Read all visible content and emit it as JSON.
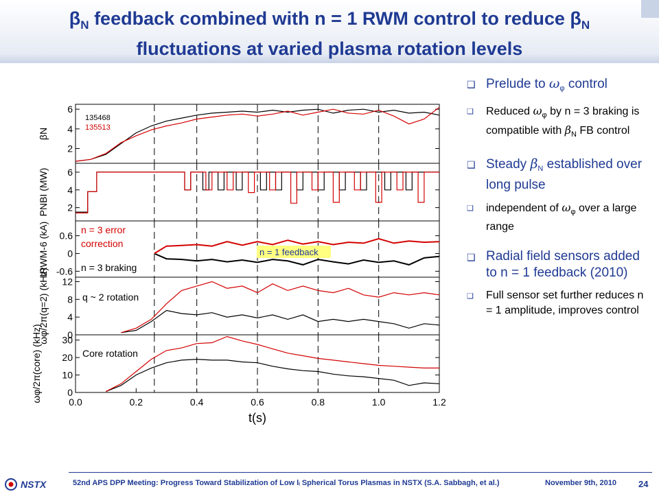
{
  "slide": {
    "title_line1_parts": [
      "β",
      "N",
      " feedback combined with n = 1 RWM control to reduce ",
      "β",
      "N"
    ],
    "title_line2": "fluctuations at varied plasma rotation levels"
  },
  "bullets": {
    "b1": {
      "text": "Prelude to ",
      "sym": "ω",
      "sub": "φ",
      "tail": " control"
    },
    "b1_sub": {
      "pre": "Reduced ",
      "sym": "ω",
      "sub": "φ",
      "mid": " by n = 3 braking is compatible with ",
      "sym2": "β",
      "sub2": "N",
      "tail": " FB control"
    },
    "b2": {
      "pre": "Steady ",
      "sym": "β",
      "sub": "N",
      "tail": " established over long pulse"
    },
    "b2_sub": {
      "pre": "independent of ",
      "sym": "ω",
      "sub": "φ",
      "tail": " over a large range"
    },
    "b3": {
      "text": "Radial field sensors added to n = 1 feedback (2010)"
    },
    "b3_sub": {
      "text": "Full sensor set further reduces n = 1 amplitude, improves control"
    }
  },
  "footer": {
    "logo_text": "NSTX",
    "meeting": "52nd APS DPP Meeting: Progress Toward Stabilization of Low lᵢ Spherical Torus Plasmas in NSTX (S.A. Sabbagh, et al.)",
    "date": "November 9th, 2010",
    "page": "24"
  },
  "colors": {
    "accent": "#1f3a93",
    "shot_black": "#000000",
    "shot_red": "#d40000",
    "highlight": "#ffff80"
  },
  "chart_data": {
    "type": "line",
    "xlabel": "t(s)",
    "xlim": [
      0.0,
      1.2
    ],
    "x_ticks": [
      "0.0",
      "0.2",
      "0.4",
      "0.6",
      "0.8",
      "1.0",
      "1.2"
    ],
    "vlines": [
      0.26,
      0.4,
      0.6,
      0.8,
      1.0
    ],
    "series_legend": [
      {
        "name": "135468",
        "color": "#000000"
      },
      {
        "name": "135513",
        "color": "#d40000"
      }
    ],
    "panels": [
      {
        "ylabel": "βN",
        "ylim": [
          0.5,
          6.5
        ],
        "y_ticks": [
          "2",
          "4",
          "6"
        ],
        "tick_values": [
          2,
          4,
          6
        ],
        "series": [
          {
            "name": "135468",
            "color": "#000000",
            "x": [
              0.0,
              0.05,
              0.1,
              0.15,
              0.2,
              0.25,
              0.3,
              0.35,
              0.4,
              0.45,
              0.5,
              0.55,
              0.6,
              0.65,
              0.7,
              0.75,
              0.8,
              0.85,
              0.9,
              0.95,
              1.0,
              1.05,
              1.1,
              1.15,
              1.2
            ],
            "y": [
              0.7,
              0.9,
              1.4,
              2.5,
              3.6,
              4.3,
              4.8,
              5.1,
              5.4,
              5.6,
              5.7,
              5.8,
              5.7,
              5.9,
              5.7,
              5.9,
              6.0,
              5.6,
              5.9,
              6.0,
              5.7,
              5.9,
              5.6,
              5.7,
              5.4
            ]
          },
          {
            "name": "135513",
            "color": "#d40000",
            "x": [
              0.0,
              0.05,
              0.1,
              0.15,
              0.2,
              0.25,
              0.3,
              0.35,
              0.4,
              0.45,
              0.5,
              0.55,
              0.6,
              0.65,
              0.7,
              0.75,
              0.8,
              0.85,
              0.9,
              0.95,
              1.0,
              1.05,
              1.1,
              1.15,
              1.2
            ],
            "y": [
              0.7,
              0.9,
              1.5,
              2.6,
              3.3,
              3.9,
              4.3,
              4.6,
              5.0,
              5.2,
              5.4,
              5.5,
              5.3,
              5.5,
              5.8,
              5.4,
              5.7,
              6.0,
              5.6,
              5.5,
              5.9,
              5.3,
              4.5,
              5.0,
              6.2
            ]
          }
        ],
        "labels": []
      },
      {
        "ylabel": "PNBI (MW)",
        "ylim": [
          0.5,
          7.0
        ],
        "y_ticks": [
          "2",
          "4",
          "6"
        ],
        "tick_values": [
          2,
          4,
          6
        ],
        "series": [
          {
            "name": "135468",
            "color": "#000000",
            "x": [
              0.0,
              0.04,
              0.04,
              0.07,
              0.07,
              0.085,
              0.085,
              0.36,
              0.36,
              0.38,
              0.38,
              0.42,
              0.42,
              0.44,
              0.44,
              0.47,
              0.47,
              0.49,
              0.49,
              0.53,
              0.53,
              0.55,
              0.55,
              0.61,
              0.61,
              0.63,
              0.63,
              0.66,
              0.66,
              0.68,
              0.68,
              0.73,
              0.73,
              0.75,
              0.75,
              0.8,
              0.8,
              0.82,
              0.82,
              0.87,
              0.87,
              0.89,
              0.89,
              0.94,
              0.94,
              0.96,
              0.96,
              1.02,
              1.02,
              1.04,
              1.04,
              1.09,
              1.09,
              1.11,
              1.11,
              1.2
            ],
            "y": [
              1.5,
              1.5,
              3.8,
              3.8,
              6.0,
              6.0,
              6.0,
              6.0,
              4.0,
              4.0,
              6.0,
              6.0,
              4.0,
              4.0,
              6.0,
              6.0,
              4.0,
              4.0,
              6.0,
              6.0,
              4.0,
              4.0,
              6.0,
              6.0,
              4.0,
              4.0,
              6.0,
              6.0,
              4.0,
              4.0,
              6.0,
              6.0,
              4.0,
              4.0,
              6.0,
              6.0,
              4.0,
              4.0,
              6.0,
              6.0,
              4.0,
              4.0,
              6.0,
              6.0,
              4.0,
              4.0,
              6.0,
              6.0,
              4.0,
              4.0,
              6.0,
              6.0,
              4.0,
              4.0,
              6.0,
              6.0
            ]
          },
          {
            "name": "135513",
            "color": "#d40000",
            "x": [
              0.0,
              0.04,
              0.04,
              0.07,
              0.07,
              0.09,
              0.09,
              0.36,
              0.36,
              0.38,
              0.38,
              0.43,
              0.43,
              0.45,
              0.45,
              0.5,
              0.5,
              0.52,
              0.52,
              0.57,
              0.57,
              0.59,
              0.59,
              0.64,
              0.64,
              0.66,
              0.66,
              0.71,
              0.71,
              0.73,
              0.73,
              0.78,
              0.78,
              0.8,
              0.8,
              0.85,
              0.85,
              0.87,
              0.87,
              0.92,
              0.92,
              0.94,
              0.94,
              0.99,
              0.99,
              1.01,
              1.01,
              1.06,
              1.06,
              1.08,
              1.08,
              1.13,
              1.13,
              1.15,
              1.15,
              1.2
            ],
            "y": [
              1.4,
              1.4,
              3.8,
              3.8,
              6.0,
              6.0,
              6.0,
              6.0,
              4.0,
              4.0,
              6.0,
              6.0,
              4.0,
              4.0,
              6.0,
              6.0,
              4.0,
              4.0,
              6.0,
              6.0,
              3.7,
              3.7,
              6.0,
              6.0,
              4.0,
              4.0,
              6.0,
              6.0,
              2.5,
              2.5,
              6.0,
              6.0,
              4.0,
              4.0,
              6.0,
              6.0,
              2.6,
              2.6,
              6.0,
              6.0,
              4.0,
              4.0,
              6.0,
              6.0,
              2.6,
              2.6,
              6.0,
              6.0,
              4.0,
              4.0,
              6.0,
              6.0,
              2.6,
              2.6,
              6.0,
              6.0
            ]
          }
        ],
        "labels": []
      },
      {
        "ylabel": "IRWM-6 (kA)",
        "ylim": [
          -0.8,
          1.1
        ],
        "y_ticks": [
          "0.6",
          "0",
          "-0.6"
        ],
        "tick_values": [
          0.6,
          0,
          -0.6
        ],
        "series": [
          {
            "name": "135468",
            "color": "#000000",
            "x": [
              0.26,
              0.3,
              0.35,
              0.4,
              0.45,
              0.5,
              0.55,
              0.6,
              0.65,
              0.7,
              0.75,
              0.8,
              0.85,
              0.9,
              0.95,
              1.0,
              1.05,
              1.1,
              1.15,
              1.2
            ],
            "y": [
              0.0,
              -0.18,
              -0.2,
              -0.25,
              -0.2,
              -0.28,
              -0.22,
              -0.3,
              -0.2,
              -0.25,
              -0.38,
              -0.2,
              -0.28,
              -0.35,
              -0.22,
              -0.3,
              -0.25,
              -0.38,
              -0.15,
              -0.1
            ]
          },
          {
            "name": "135513",
            "color": "#d40000",
            "x": [
              0.26,
              0.3,
              0.35,
              0.4,
              0.45,
              0.5,
              0.55,
              0.6,
              0.65,
              0.7,
              0.75,
              0.8,
              0.85,
              0.9,
              0.95,
              1.0,
              1.05,
              1.1,
              1.15,
              1.2
            ],
            "y": [
              0.0,
              0.25,
              0.27,
              0.3,
              0.25,
              0.4,
              0.28,
              0.4,
              0.3,
              0.45,
              0.32,
              0.4,
              0.3,
              0.38,
              0.35,
              0.5,
              0.35,
              0.42,
              0.38,
              0.4
            ]
          }
        ],
        "labels": [
          "n = 3 error",
          "correction",
          "n = 3 braking",
          "n = 1 feedback"
        ]
      },
      {
        "ylabel": "ωφ/2π(q=2) (kHz)",
        "ylim": [
          0,
          13
        ],
        "y_ticks": [
          "12",
          "8",
          "4",
          "0"
        ],
        "tick_values": [
          12,
          8,
          4,
          0
        ],
        "series": [
          {
            "name": "135468",
            "color": "#000000",
            "x": [
              0.15,
              0.2,
              0.25,
              0.3,
              0.35,
              0.4,
              0.45,
              0.5,
              0.55,
              0.6,
              0.65,
              0.7,
              0.75,
              0.8,
              0.85,
              0.9,
              0.95,
              1.0,
              1.05,
              1.1,
              1.15,
              1.2
            ],
            "y": [
              0.5,
              1.0,
              3.0,
              5.5,
              4.8,
              4.5,
              5.0,
              4.0,
              4.5,
              3.8,
              4.5,
              3.5,
              4.5,
              3.0,
              3.5,
              3.0,
              3.5,
              3.0,
              2.5,
              1.5,
              2.5,
              2.2
            ]
          },
          {
            "name": "135513",
            "color": "#d40000",
            "x": [
              0.15,
              0.2,
              0.25,
              0.3,
              0.35,
              0.4,
              0.45,
              0.5,
              0.55,
              0.6,
              0.65,
              0.7,
              0.75,
              0.8,
              0.85,
              0.9,
              0.95,
              1.0,
              1.05,
              1.1,
              1.15,
              1.2
            ],
            "y": [
              0.5,
              1.5,
              3.5,
              7.0,
              10.0,
              11.0,
              12.0,
              10.5,
              11.0,
              9.5,
              11.5,
              10.0,
              11.0,
              10.0,
              9.5,
              10.5,
              9.0,
              8.5,
              9.5,
              9.0,
              9.5,
              9.0
            ]
          }
        ],
        "labels": [
          "q ~ 2 rotation"
        ]
      },
      {
        "ylabel": "ωφ/2π(core) (kHz)",
        "ylim": [
          0,
          33
        ],
        "y_ticks": [
          "30",
          "20",
          "10",
          "0"
        ],
        "tick_values": [
          30,
          20,
          10,
          0
        ],
        "series": [
          {
            "name": "135468",
            "color": "#000000",
            "x": [
              0.1,
              0.15,
              0.2,
              0.25,
              0.3,
              0.35,
              0.4,
              0.45,
              0.5,
              0.55,
              0.6,
              0.65,
              0.7,
              0.75,
              0.8,
              0.85,
              0.9,
              0.95,
              1.0,
              1.05,
              1.1,
              1.15,
              1.2
            ],
            "y": [
              0.5,
              4.0,
              10.0,
              14.0,
              17.0,
              18.5,
              19.0,
              18.5,
              18.5,
              17.5,
              17.0,
              15.0,
              13.5,
              12.5,
              12.0,
              10.5,
              9.5,
              9.0,
              8.0,
              7.0,
              4.0,
              5.5,
              5.0
            ]
          },
          {
            "name": "135513",
            "color": "#d40000",
            "x": [
              0.1,
              0.15,
              0.2,
              0.25,
              0.3,
              0.35,
              0.4,
              0.45,
              0.5,
              0.55,
              0.6,
              0.65,
              0.7,
              0.75,
              0.8,
              0.85,
              0.9,
              0.95,
              1.0,
              1.05,
              1.1,
              1.15,
              1.2
            ],
            "y": [
              0.5,
              5.0,
              12.0,
              19.0,
              24.0,
              25.5,
              28.0,
              28.5,
              32.0,
              29.5,
              27.5,
              25.0,
              22.5,
              21.0,
              19.5,
              18.5,
              17.5,
              16.5,
              15.5,
              15.0,
              14.5,
              14.0,
              14.0
            ]
          }
        ],
        "labels": [
          "Core rotation"
        ]
      }
    ]
  }
}
